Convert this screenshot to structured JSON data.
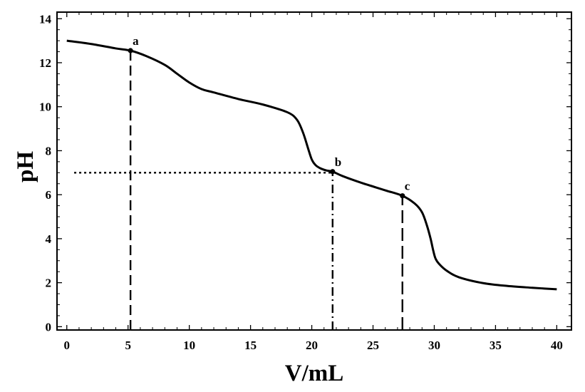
{
  "chart_data": {
    "type": "line",
    "xlabel": "V/mL",
    "ylabel": "pH",
    "xlim": [
      -0.8,
      41.2
    ],
    "ylim": [
      -0.15,
      14.3
    ],
    "x_ticks": [
      0,
      5,
      10,
      15,
      20,
      25,
      30,
      35,
      40
    ],
    "y_ticks": [
      0,
      2,
      4,
      6,
      8,
      10,
      12,
      14
    ],
    "grid": false,
    "legend": "none",
    "colors": {
      "line": "#000000",
      "frame": "#000000",
      "background": "#ffffff"
    },
    "series": [
      {
        "x": [
          0,
          2,
          4,
          5.2,
          6.5,
          8,
          9,
          10,
          11,
          12,
          14,
          16,
          18,
          18.8,
          19.3,
          19.7,
          20.0,
          20.3,
          20.7,
          21.2,
          21.7,
          22.5,
          24,
          26,
          27.4,
          28.4,
          29.0,
          29.4,
          29.7,
          29.9,
          30.1,
          30.4,
          31,
          32,
          34,
          36,
          38,
          40
        ],
        "y": [
          13.0,
          12.85,
          12.65,
          12.55,
          12.3,
          11.9,
          11.5,
          11.1,
          10.8,
          10.65,
          10.35,
          10.1,
          9.75,
          9.4,
          8.8,
          8.1,
          7.6,
          7.35,
          7.2,
          7.1,
          7.05,
          6.85,
          6.55,
          6.2,
          5.95,
          5.6,
          5.2,
          4.6,
          4.0,
          3.5,
          3.1,
          2.85,
          2.55,
          2.25,
          1.98,
          1.85,
          1.77,
          1.7
        ]
      }
    ],
    "points": [
      {
        "label": "a",
        "x": 5.2,
        "y": 12.55
      },
      {
        "label": "b",
        "x": 21.7,
        "y": 7.05
      },
      {
        "label": "c",
        "x": 27.4,
        "y": 5.95
      }
    ],
    "guides": [
      {
        "name": "guide-a-vertical",
        "style": "dashed",
        "from": [
          5.2,
          -0.15
        ],
        "to": [
          5.2,
          12.55
        ]
      },
      {
        "name": "guide-b-horizontal",
        "style": "dotted",
        "from": [
          0.6,
          7.0
        ],
        "to": [
          21.7,
          7.0
        ]
      },
      {
        "name": "guide-b-vertical",
        "style": "dashdot",
        "from": [
          21.7,
          -0.15
        ],
        "to": [
          21.7,
          7.05
        ]
      },
      {
        "name": "guide-c-vertical",
        "style": "longdash",
        "from": [
          27.4,
          -0.15
        ],
        "to": [
          27.4,
          5.95
        ]
      }
    ]
  }
}
